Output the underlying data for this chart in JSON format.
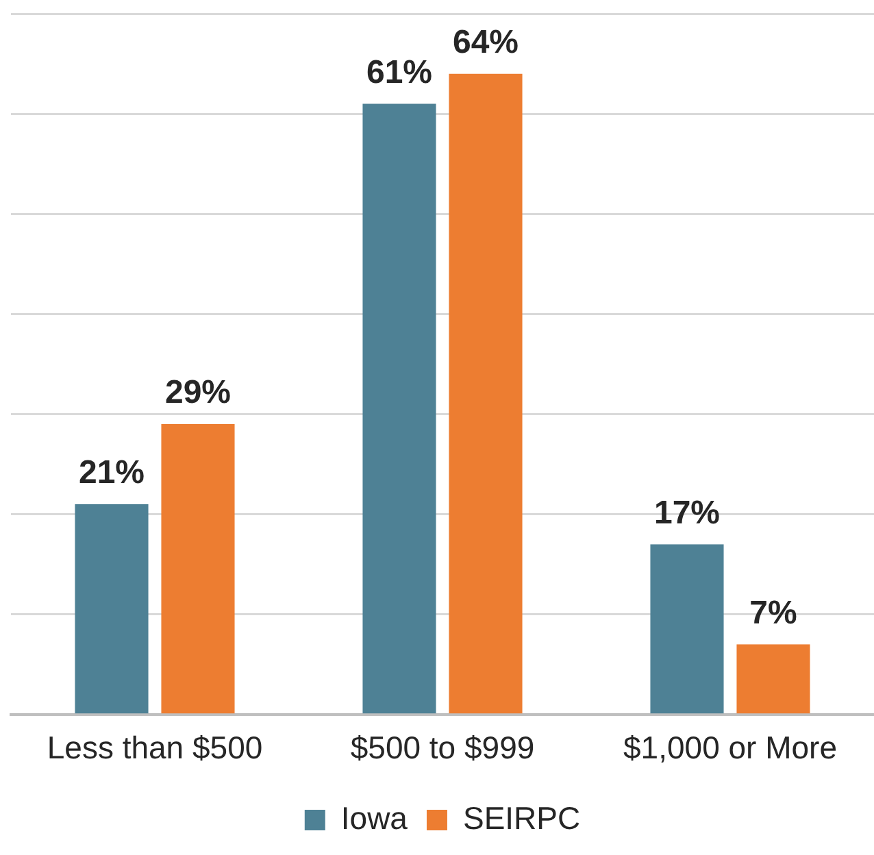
{
  "chart_data": {
    "type": "bar",
    "categories": [
      "Less than $500",
      "$500 to $999",
      "$1,000 or More"
    ],
    "series": [
      {
        "name": "Iowa",
        "color": "#4e8195",
        "values": [
          21,
          61,
          17
        ],
        "value_labels": [
          "21%",
          "61%",
          "17%"
        ]
      },
      {
        "name": "SEIRPC",
        "color": "#ed7d31",
        "values": [
          29,
          64,
          7
        ],
        "value_labels": [
          "29%",
          "64%",
          "7%"
        ]
      }
    ],
    "grid": "y",
    "legend": "bottom",
    "tick_labels": "x"
  }
}
